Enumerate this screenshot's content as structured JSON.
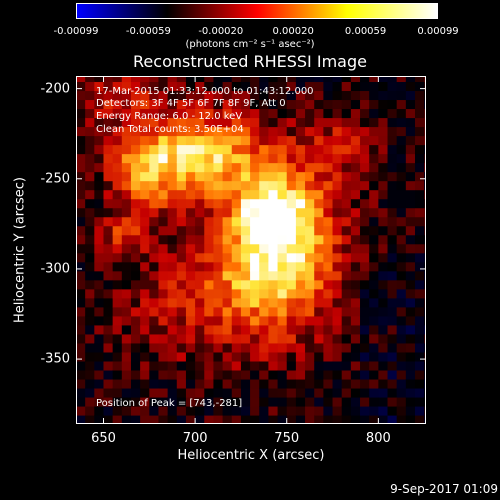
{
  "colorbar": {
    "ticks": [
      "-0.00099",
      "-0.00059",
      "-0.00020",
      "0.00020",
      "0.00059",
      "0.00099"
    ],
    "unit": "(photons cm⁻² s⁻¹ asec⁻²)",
    "colors": [
      "#0000ff",
      "#000000",
      "#ff0000",
      "#ffff00",
      "#ffffff"
    ]
  },
  "annotations": [
    "17-Mar-2015 01:33:12.000 to 01:43:12.000",
    "Detectors: 3F 4F 5F 6F 7F 8F 9F, Att 0",
    "Energy Range: 6.0 - 12.0 keV",
    "Clean      Total counts: 3.50E+04",
    "Position of Peak = [743,-281]"
  ],
  "footer": "9-Sep-2017 01:09",
  "chart_data": {
    "type": "heatmap",
    "title": "Reconstructed RHESSI Image",
    "xlabel": "Heliocentric X (arcsec)",
    "ylabel": "Heliocentric Y (arcsec)",
    "xlim": [
      635,
      826
    ],
    "ylim": [
      -386,
      -193
    ],
    "xticks": [
      "650",
      "700",
      "750",
      "800"
    ],
    "yticks": [
      "-200",
      "-250",
      "-300",
      "-350"
    ],
    "xtick_values": [
      650,
      700,
      750,
      800
    ],
    "ytick_values": [
      -200,
      -250,
      -300,
      -350
    ],
    "value_range": [
      -0.00099,
      0.00099
    ],
    "peak": [
      743,
      -281
    ],
    "sources": [
      {
        "x": 745,
        "y": -285,
        "sx": 22,
        "sy": 32,
        "amp": 0.00099
      },
      {
        "x": 742,
        "y": -268,
        "sx": 12,
        "sy": 10,
        "amp": 0.0004
      },
      {
        "x": 705,
        "y": -235,
        "sx": 20,
        "sy": 16,
        "amp": 0.0007
      },
      {
        "x": 673,
        "y": -245,
        "sx": 15,
        "sy": 16,
        "amp": 0.0006
      },
      {
        "x": 660,
        "y": -282,
        "sx": 9,
        "sy": 8,
        "amp": 0.00035
      },
      {
        "x": 700,
        "y": -318,
        "sx": 30,
        "sy": 24,
        "amp": 0.0003
      },
      {
        "x": 780,
        "y": -232,
        "sx": 14,
        "sy": 14,
        "amp": 0.00025
      },
      {
        "x": 660,
        "y": -205,
        "sx": 20,
        "sy": 12,
        "amp": 0.0003
      }
    ]
  }
}
